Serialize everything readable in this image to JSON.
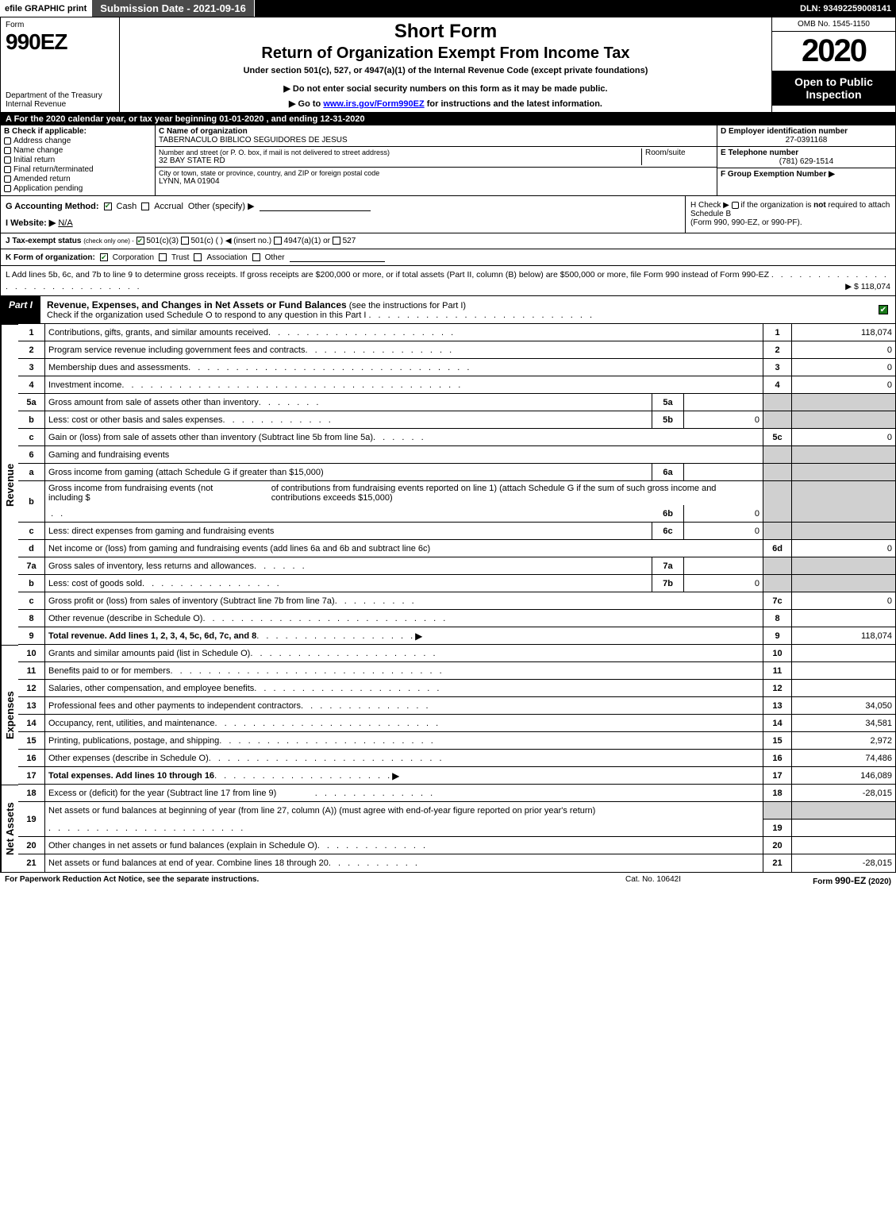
{
  "topbar": {
    "efile": "efile GRAPHIC print",
    "submission": "Submission Date - 2021-09-16",
    "dln": "DLN: 93492259008141"
  },
  "header": {
    "form_label": "Form",
    "form_number": "990EZ",
    "dept1": "Department of the Treasury",
    "dept2": "Internal Revenue",
    "title1": "Short Form",
    "title2": "Return of Organization Exempt From Income Tax",
    "subtitle": "Under section 501(c), 527, or 4947(a)(1) of the Internal Revenue Code (except private foundations)",
    "note1": "▶ Do not enter social security numbers on this form as it may be made public.",
    "note2_pre": "▶ Go to ",
    "note2_link": "www.irs.gov/Form990EZ",
    "note2_post": " for instructions and the latest information.",
    "omb": "OMB No. 1545-1150",
    "year": "2020",
    "inspect1": "Open to Public",
    "inspect2": "Inspection"
  },
  "row_a": "A   For the 2020 calendar year, or tax year beginning 01-01-2020 , and ending 12-31-2020",
  "section_b": {
    "head": "B  Check if applicable:",
    "items": [
      "Address change",
      "Name change",
      "Initial return",
      "Final return/terminated",
      "Amended return",
      "Application pending"
    ]
  },
  "section_c": {
    "c_label": "C Name of organization",
    "c_name": "TABERNACULO BIBLICO SEGUIDORES DE JESUS",
    "addr_label": "Number and street (or P. O. box, if mail is not delivered to street address)",
    "addr": "32 BAY STATE RD",
    "room_label": "Room/suite",
    "city_label": "City or town, state or province, country, and ZIP or foreign postal code",
    "city": "LYNN, MA  01904"
  },
  "section_d": {
    "d_label": "D Employer identification number",
    "ein": "27-0391168",
    "e_label": "E Telephone number",
    "phone": "(781) 629-1514",
    "f_label": "F Group Exemption Number    ▶"
  },
  "row_g": {
    "label": "G Accounting Method:",
    "cash": "Cash",
    "accrual": "Accrual",
    "other": "Other (specify) ▶"
  },
  "row_h": {
    "text1": "H  Check ▶",
    "text2": "if the organization is ",
    "text2b": "not",
    "text3": " required to attach Schedule B",
    "text4": "(Form 990, 990-EZ, or 990-PF)."
  },
  "row_i": {
    "label": "I Website: ▶",
    "value": "N/A"
  },
  "row_j": {
    "label": "J Tax-exempt status",
    "sub": "(check only one) -",
    "opt1": "501(c)(3)",
    "opt2": "501(c) (    ) ◀ (insert no.)",
    "opt3": "4947(a)(1) or",
    "opt4": "527"
  },
  "row_k": {
    "label": "K Form of organization:",
    "opts": [
      "Corporation",
      "Trust",
      "Association",
      "Other"
    ]
  },
  "row_l": {
    "text": "L Add lines 5b, 6c, and 7b to line 9 to determine gross receipts. If gross receipts are $200,000 or more, or if total assets (Part II, column (B) below) are $500,000 or more, file Form 990 instead of Form 990-EZ",
    "dots": ". . . . . . . . . . . . . . . . . . . . . . . . . . . .",
    "amount": "▶ $ 118,074"
  },
  "part1": {
    "label": "Part I",
    "title": "Revenue, Expenses, and Changes in Net Assets or Fund Balances",
    "title_sub": "(see the instructions for Part I)",
    "check_line": "Check if the organization used Schedule O to respond to any question in this Part I"
  },
  "sidelabels": {
    "revenue": "Revenue",
    "expenses": "Expenses",
    "netassets": "Net Assets"
  },
  "lines": {
    "l1": {
      "n": "1",
      "d": "Contributions, gifts, grants, and similar amounts received",
      "r": "1",
      "a": "118,074"
    },
    "l2": {
      "n": "2",
      "d": "Program service revenue including government fees and contracts",
      "r": "2",
      "a": "0"
    },
    "l3": {
      "n": "3",
      "d": "Membership dues and assessments",
      "r": "3",
      "a": "0"
    },
    "l4": {
      "n": "4",
      "d": "Investment income",
      "r": "4",
      "a": "0"
    },
    "l5a": {
      "n": "5a",
      "d": "Gross amount from sale of assets other than inventory",
      "in": "5a",
      "ia": ""
    },
    "l5b": {
      "n": "b",
      "d": "Less: cost or other basis and sales expenses",
      "in": "5b",
      "ia": "0"
    },
    "l5c": {
      "n": "c",
      "d": "Gain or (loss) from sale of assets other than inventory (Subtract line 5b from line 5a)",
      "r": "5c",
      "a": "0"
    },
    "l6": {
      "n": "6",
      "d": "Gaming and fundraising events"
    },
    "l6a": {
      "n": "a",
      "d": "Gross income from gaming (attach Schedule G if greater than $15,000)",
      "in": "6a",
      "ia": ""
    },
    "l6b": {
      "n": "b",
      "d1": "Gross income from fundraising events (not including $",
      "d2": "of contributions from fundraising events reported on line 1) (attach Schedule G if the sum of such gross income and contributions exceeds $15,000)",
      "in": "6b",
      "ia": "0"
    },
    "l6c": {
      "n": "c",
      "d": "Less: direct expenses from gaming and fundraising events",
      "in": "6c",
      "ia": "0"
    },
    "l6d": {
      "n": "d",
      "d": "Net income or (loss) from gaming and fundraising events (add lines 6a and 6b and subtract line 6c)",
      "r": "6d",
      "a": "0"
    },
    "l7a": {
      "n": "7a",
      "d": "Gross sales of inventory, less returns and allowances",
      "in": "7a",
      "ia": ""
    },
    "l7b": {
      "n": "b",
      "d": "Less: cost of goods sold",
      "in": "7b",
      "ia": "0"
    },
    "l7c": {
      "n": "c",
      "d": "Gross profit or (loss) from sales of inventory (Subtract line 7b from line 7a)",
      "r": "7c",
      "a": "0"
    },
    "l8": {
      "n": "8",
      "d": "Other revenue (describe in Schedule O)",
      "r": "8",
      "a": ""
    },
    "l9": {
      "n": "9",
      "d": "Total revenue. Add lines 1, 2, 3, 4, 5c, 6d, 7c, and 8",
      "r": "9",
      "a": "118,074",
      "bold": true
    },
    "l10": {
      "n": "10",
      "d": "Grants and similar amounts paid (list in Schedule O)",
      "r": "10",
      "a": ""
    },
    "l11": {
      "n": "11",
      "d": "Benefits paid to or for members",
      "r": "11",
      "a": ""
    },
    "l12": {
      "n": "12",
      "d": "Salaries, other compensation, and employee benefits",
      "r": "12",
      "a": ""
    },
    "l13": {
      "n": "13",
      "d": "Professional fees and other payments to independent contractors",
      "r": "13",
      "a": "34,050"
    },
    "l14": {
      "n": "14",
      "d": "Occupancy, rent, utilities, and maintenance",
      "r": "14",
      "a": "34,581"
    },
    "l15": {
      "n": "15",
      "d": "Printing, publications, postage, and shipping",
      "r": "15",
      "a": "2,972"
    },
    "l16": {
      "n": "16",
      "d": "Other expenses (describe in Schedule O)",
      "r": "16",
      "a": "74,486"
    },
    "l17": {
      "n": "17",
      "d": "Total expenses. Add lines 10 through 16",
      "r": "17",
      "a": "146,089",
      "bold": true
    },
    "l18": {
      "n": "18",
      "d": "Excess or (deficit) for the year (Subtract line 17 from line 9)",
      "r": "18",
      "a": "-28,015"
    },
    "l19": {
      "n": "19",
      "d": "Net assets or fund balances at beginning of year (from line 27, column (A)) (must agree with end-of-year figure reported on prior year's return)",
      "r": "19",
      "a": ""
    },
    "l20": {
      "n": "20",
      "d": "Other changes in net assets or fund balances (explain in Schedule O)",
      "r": "20",
      "a": ""
    },
    "l21": {
      "n": "21",
      "d": "Net assets or fund balances at end of year. Combine lines 18 through 20",
      "r": "21",
      "a": "-28,015"
    }
  },
  "footer": {
    "left": "For Paperwork Reduction Act Notice, see the separate instructions.",
    "mid": "Cat. No. 10642I",
    "right_pre": "Form ",
    "right_bold": "990-EZ",
    "right_post": " (2020)"
  },
  "colors": {
    "black": "#000000",
    "white": "#ffffff",
    "darkgrey": "#4a4a4a",
    "shade": "#d0d0d0",
    "check_green": "#1a7a1a",
    "link_blue": "#0000ff"
  }
}
